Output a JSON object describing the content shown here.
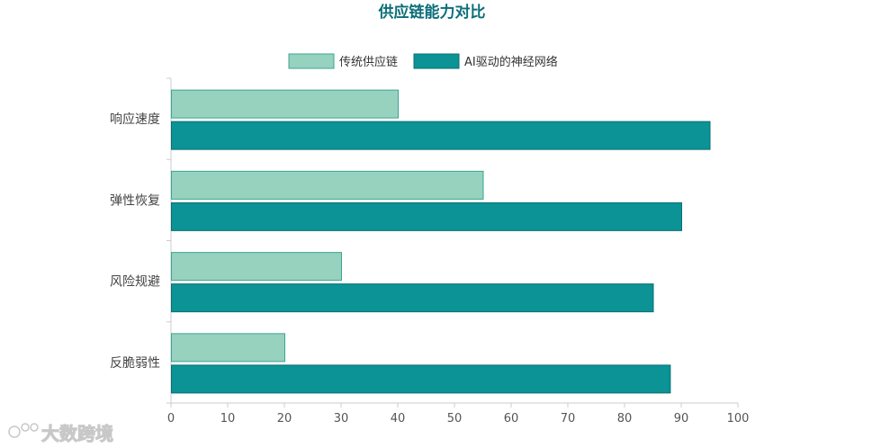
{
  "chart_data": {
    "type": "bar",
    "orientation": "horizontal",
    "title": "供应链能力对比",
    "categories": [
      "响应速度",
      "弹性恢复",
      "风险规避",
      "反脆弱性"
    ],
    "series": [
      {
        "name": "传统供应链",
        "values": [
          40,
          55,
          30,
          20
        ],
        "color": "#97d2be",
        "stroke": "#3aa593"
      },
      {
        "name": "AI驱动的神经网络",
        "values": [
          95,
          90,
          85,
          88
        ],
        "color": "#0b9396",
        "stroke": "#0a6f72"
      }
    ],
    "xlim": [
      0,
      100
    ],
    "xticks": [
      0,
      10,
      20,
      30,
      40,
      50,
      60,
      70,
      80,
      90,
      100
    ],
    "xlabel": "",
    "ylabel": "",
    "grid": false,
    "legend_position": "top-center"
  },
  "watermark": "大数跨境"
}
